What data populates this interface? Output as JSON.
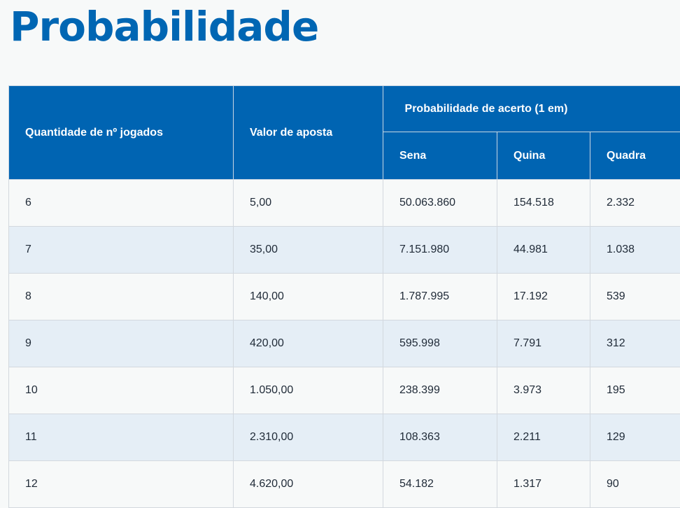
{
  "title": "Probabilidade",
  "table": {
    "headers": {
      "quantidade": "Quantidade de nº jogados",
      "valor": "Valor de aposta",
      "group": "Probabilidade de acerto (1 em)",
      "sena": "Sena",
      "quina": "Quina",
      "quadra": "Quadra"
    },
    "rows": [
      [
        "6",
        "5,00",
        "50.063.860",
        "154.518",
        "2.332"
      ],
      [
        "7",
        "35,00",
        "7.151.980",
        "44.981",
        "1.038"
      ],
      [
        "8",
        "140,00",
        "1.787.995",
        "17.192",
        "539"
      ],
      [
        "9",
        "420,00",
        "595.998",
        "7.791",
        "312"
      ],
      [
        "10",
        "1.050,00",
        "238.399",
        "3.973",
        "195"
      ],
      [
        "11",
        "2.310,00",
        "108.363",
        "2.211",
        "129"
      ],
      [
        "12",
        "4.620,00",
        "54.182",
        "1.317",
        "90"
      ]
    ]
  }
}
